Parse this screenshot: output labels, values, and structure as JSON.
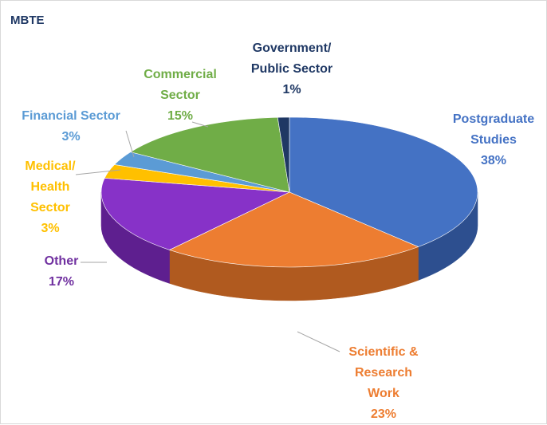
{
  "chart_data": {
    "type": "pie",
    "title": "MBTE",
    "three_d": true,
    "slices": [
      {
        "label": "Postgraduate Studies",
        "lines": [
          "Postgraduate",
          "Studies"
        ],
        "pct_text": "38%",
        "value": 38,
        "color": "#4472c4",
        "side": "#2d4f8f"
      },
      {
        "label": "Scientific & Research Work",
        "lines": [
          "Scientific &",
          "Research",
          "Work"
        ],
        "pct_text": "23%",
        "value": 23,
        "color": "#ed7d31",
        "side": "#b05a1f"
      },
      {
        "label": "Other",
        "lines": [
          "Other"
        ],
        "pct_text": "17%",
        "value": 17,
        "color": "#8732c8",
        "side": "#5e1f8f"
      },
      {
        "label": "Medical/ Health Sector",
        "lines": [
          "Medical/",
          "Health",
          "Sector"
        ],
        "pct_text": "3%",
        "value": 3,
        "color": "#ffc000",
        "side": "#b38600"
      },
      {
        "label": "Financial Sector",
        "lines": [
          "Financial Sector"
        ],
        "pct_text": "3%",
        "value": 3,
        "color": "#5b9bd5",
        "side": "#3f6f99"
      },
      {
        "label": "Commercial Sector",
        "lines": [
          "Commercial",
          "Sector"
        ],
        "pct_text": "15%",
        "value": 15,
        "color": "#70ad47",
        "side": "#4d7a31"
      },
      {
        "label": "Government/ Public Sector",
        "lines": [
          "Government/",
          "Public Sector"
        ],
        "pct_text": "1%",
        "value": 1,
        "color": "#1f3864",
        "side": "#13223d"
      }
    ],
    "label_colors": [
      "#4472c4",
      "#ed7d31",
      "#7030a0",
      "#ffc000",
      "#5b9bd5",
      "#70ad47",
      "#1f3864"
    ]
  }
}
